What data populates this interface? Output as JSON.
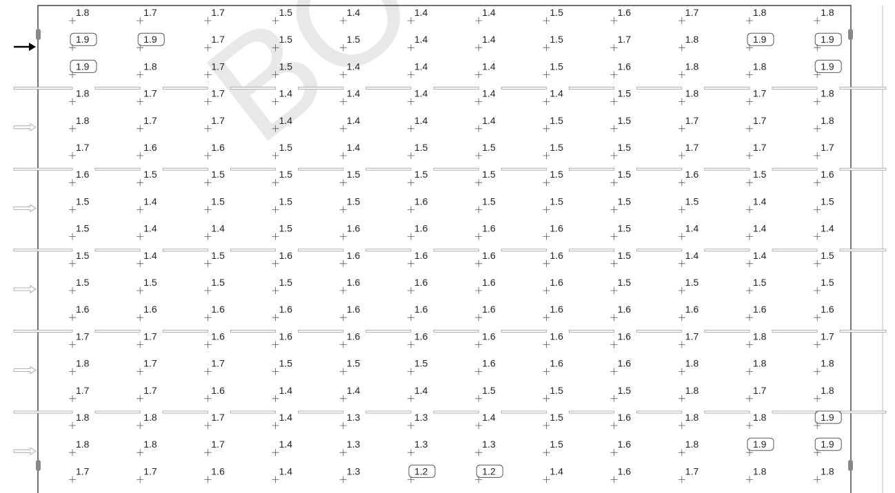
{
  "watermark": "BO",
  "grid": {
    "rows": [
      [
        1.8,
        1.7,
        1.7,
        1.5,
        1.4,
        1.4,
        1.4,
        1.5,
        1.6,
        1.7,
        1.8,
        1.8
      ],
      [
        1.9,
        1.9,
        1.7,
        1.5,
        1.5,
        1.4,
        1.4,
        1.5,
        1.7,
        1.8,
        1.9,
        1.9
      ],
      [
        1.9,
        1.8,
        1.7,
        1.5,
        1.4,
        1.4,
        1.4,
        1.5,
        1.6,
        1.8,
        1.8,
        1.9
      ],
      [
        1.8,
        1.7,
        1.7,
        1.4,
        1.4,
        1.4,
        1.4,
        1.4,
        1.5,
        1.8,
        1.7,
        1.8
      ],
      [
        1.8,
        1.7,
        1.7,
        1.4,
        1.4,
        1.4,
        1.4,
        1.5,
        1.5,
        1.7,
        1.7,
        1.8
      ],
      [
        1.7,
        1.6,
        1.6,
        1.5,
        1.4,
        1.5,
        1.5,
        1.5,
        1.5,
        1.7,
        1.7,
        1.7
      ],
      [
        1.6,
        1.5,
        1.5,
        1.5,
        1.5,
        1.5,
        1.5,
        1.5,
        1.5,
        1.6,
        1.5,
        1.6
      ],
      [
        1.5,
        1.4,
        1.5,
        1.5,
        1.5,
        1.6,
        1.5,
        1.5,
        1.5,
        1.5,
        1.4,
        1.5
      ],
      [
        1.5,
        1.4,
        1.4,
        1.5,
        1.6,
        1.6,
        1.6,
        1.6,
        1.5,
        1.4,
        1.4,
        1.4
      ],
      [
        1.5,
        1.4,
        1.5,
        1.6,
        1.6,
        1.6,
        1.6,
        1.6,
        1.5,
        1.4,
        1.4,
        1.5
      ],
      [
        1.5,
        1.5,
        1.5,
        1.5,
        1.6,
        1.6,
        1.6,
        1.6,
        1.5,
        1.5,
        1.5,
        1.5
      ],
      [
        1.6,
        1.6,
        1.6,
        1.6,
        1.6,
        1.6,
        1.6,
        1.6,
        1.6,
        1.6,
        1.6,
        1.6
      ],
      [
        1.7,
        1.7,
        1.6,
        1.6,
        1.6,
        1.6,
        1.6,
        1.6,
        1.6,
        1.7,
        1.8,
        1.7
      ],
      [
        1.8,
        1.7,
        1.7,
        1.5,
        1.5,
        1.5,
        1.6,
        1.6,
        1.6,
        1.8,
        1.8,
        1.8
      ],
      [
        1.7,
        1.7,
        1.6,
        1.4,
        1.4,
        1.4,
        1.5,
        1.5,
        1.5,
        1.8,
        1.7,
        1.8
      ],
      [
        1.8,
        1.8,
        1.7,
        1.4,
        1.3,
        1.3,
        1.4,
        1.5,
        1.6,
        1.8,
        1.8,
        1.9
      ],
      [
        1.8,
        1.8,
        1.7,
        1.4,
        1.3,
        1.3,
        1.3,
        1.5,
        1.6,
        1.8,
        1.9,
        1.9
      ],
      [
        1.7,
        1.7,
        1.6,
        1.4,
        1.3,
        1.2,
        1.2,
        1.4,
        1.6,
        1.7,
        1.8,
        1.8
      ]
    ],
    "highlighted": [
      [
        1,
        0
      ],
      [
        1,
        1
      ],
      [
        1,
        10
      ],
      [
        1,
        11
      ],
      [
        2,
        0
      ],
      [
        2,
        11
      ],
      [
        15,
        11
      ],
      [
        16,
        10
      ],
      [
        16,
        11
      ],
      [
        17,
        5
      ],
      [
        17,
        6
      ]
    ]
  }
}
